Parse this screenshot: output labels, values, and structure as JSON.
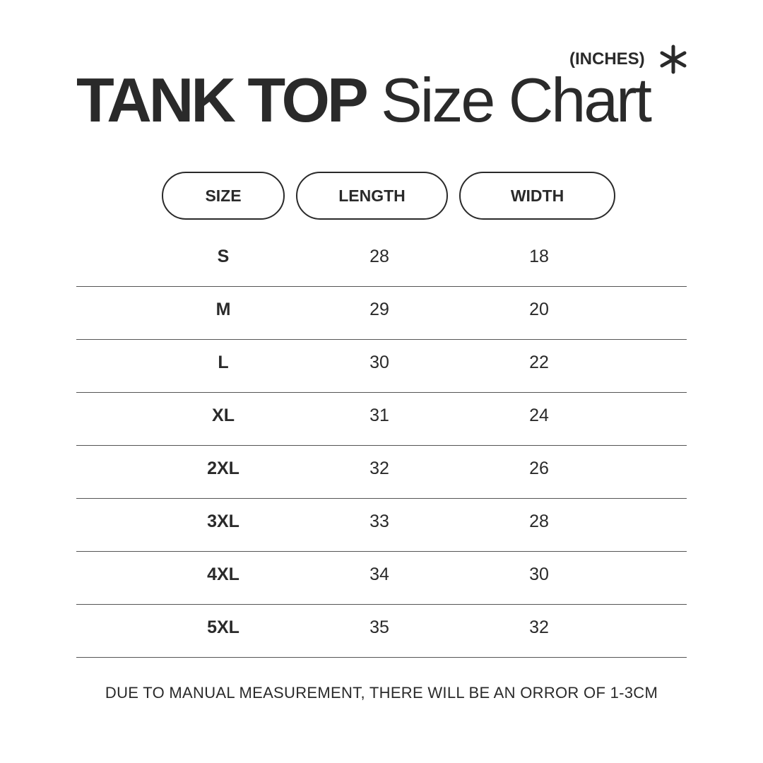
{
  "title": {
    "bold": "TANK TOP",
    "regular": "Size Chart"
  },
  "unit": "(INCHES)",
  "icon": "asterisk-icon",
  "headers": [
    "SIZE",
    "LENGTH",
    "WIDTH"
  ],
  "rows": [
    [
      "S",
      "28",
      "18"
    ],
    [
      "M",
      "29",
      "20"
    ],
    [
      "L",
      "30",
      "22"
    ],
    [
      "XL",
      "31",
      "24"
    ],
    [
      "2XL",
      "32",
      "26"
    ],
    [
      "3XL",
      "33",
      "28"
    ],
    [
      "4XL",
      "34",
      "30"
    ],
    [
      "5XL",
      "35",
      "32"
    ]
  ],
  "note": "DUE TO MANUAL MEASUREMENT, THERE WILL BE AN ORROR OF 1-3CM"
}
